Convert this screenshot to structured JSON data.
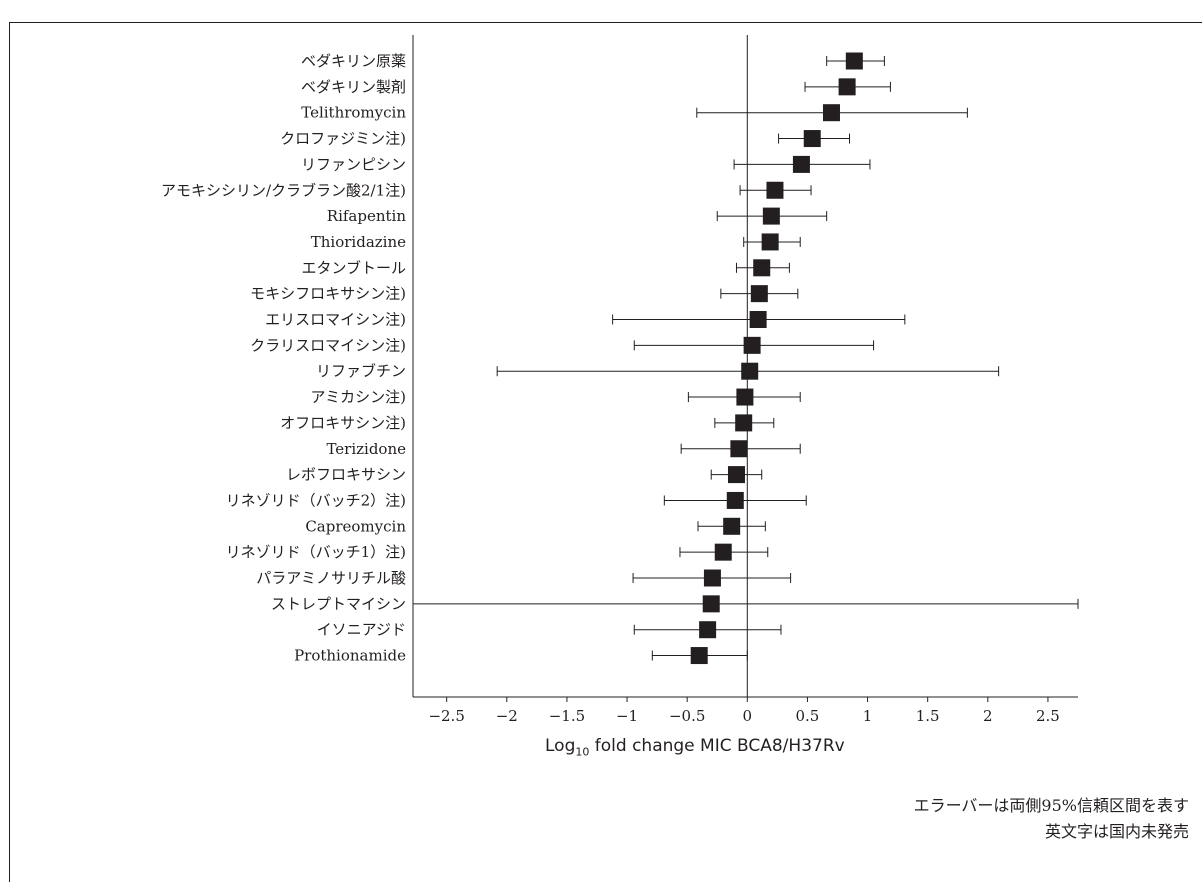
{
  "header": {
    "partial_title": ""
  },
  "chart_data": {
    "type": "scatter",
    "subtype": "forest-plot",
    "categories": [
      "ベダキリン原薬",
      "ベダキリン製剤",
      "Telithromycin",
      "クロファジミン注)",
      "リファンピシン",
      "アモキシシリン/クラブラン酸2/1注)",
      "Rifapentin",
      "Thioridazine",
      "エタンブトール",
      "モキシフロキサシン注)",
      "エリスロマイシン注)",
      "クラリスロマイシン注)",
      "リファブチン",
      "アミカシン注)",
      "オフロキサシン注)",
      "Terizidone",
      "レボフロキサシン",
      "リネゾリド（バッチ2）注)",
      "Capreomycin",
      "リネゾリド（バッチ1）注)",
      "パラアミノサリチル酸",
      "ストレプトマイシン",
      "イソニアジド",
      "Prothionamide"
    ],
    "estimate": [
      0.89,
      0.83,
      0.7,
      0.54,
      0.45,
      0.23,
      0.2,
      0.19,
      0.12,
      0.1,
      0.09,
      0.04,
      0.02,
      -0.02,
      -0.03,
      -0.07,
      -0.09,
      -0.1,
      -0.13,
      -0.2,
      -0.29,
      -0.3,
      -0.33,
      -0.4
    ],
    "ci_lower": [
      0.66,
      0.48,
      -0.42,
      0.26,
      -0.11,
      -0.06,
      -0.25,
      -0.03,
      -0.09,
      -0.22,
      -1.12,
      -0.94,
      -2.08,
      -0.49,
      -0.27,
      -0.55,
      -0.3,
      -0.69,
      -0.41,
      -0.56,
      -0.95,
      -2.78,
      -0.94,
      -0.79
    ],
    "ci_upper": [
      1.14,
      1.19,
      1.83,
      0.85,
      1.02,
      0.53,
      0.66,
      0.44,
      0.35,
      0.42,
      1.31,
      1.05,
      2.09,
      0.44,
      0.22,
      0.44,
      0.12,
      0.49,
      0.15,
      0.17,
      0.36,
      2.75,
      0.28,
      0.0
    ],
    "xlim": [
      -2.78,
      2.75
    ],
    "x_ticks": [
      -2.5,
      -2,
      -1.5,
      -1,
      -0.5,
      0,
      0.5,
      1,
      1.5,
      2,
      2.5
    ],
    "x_tick_labels": [
      "−2.5",
      "−2",
      "−1.5",
      "−1",
      "−0.5",
      "0",
      "0.5",
      "1",
      "1.5",
      "2",
      "2.5"
    ],
    "reference_line_x": 0,
    "xlabel_pre": "Log",
    "xlabel_sub": "10",
    "xlabel_post": " fold change MIC BCA8/H37Rv",
    "ylabel": "",
    "grid": false,
    "marker_color": "#231f20"
  },
  "notes": {
    "line1": "エラーバーは両側95%信頼区間を表す",
    "line2": "英文字は国内未発売"
  }
}
